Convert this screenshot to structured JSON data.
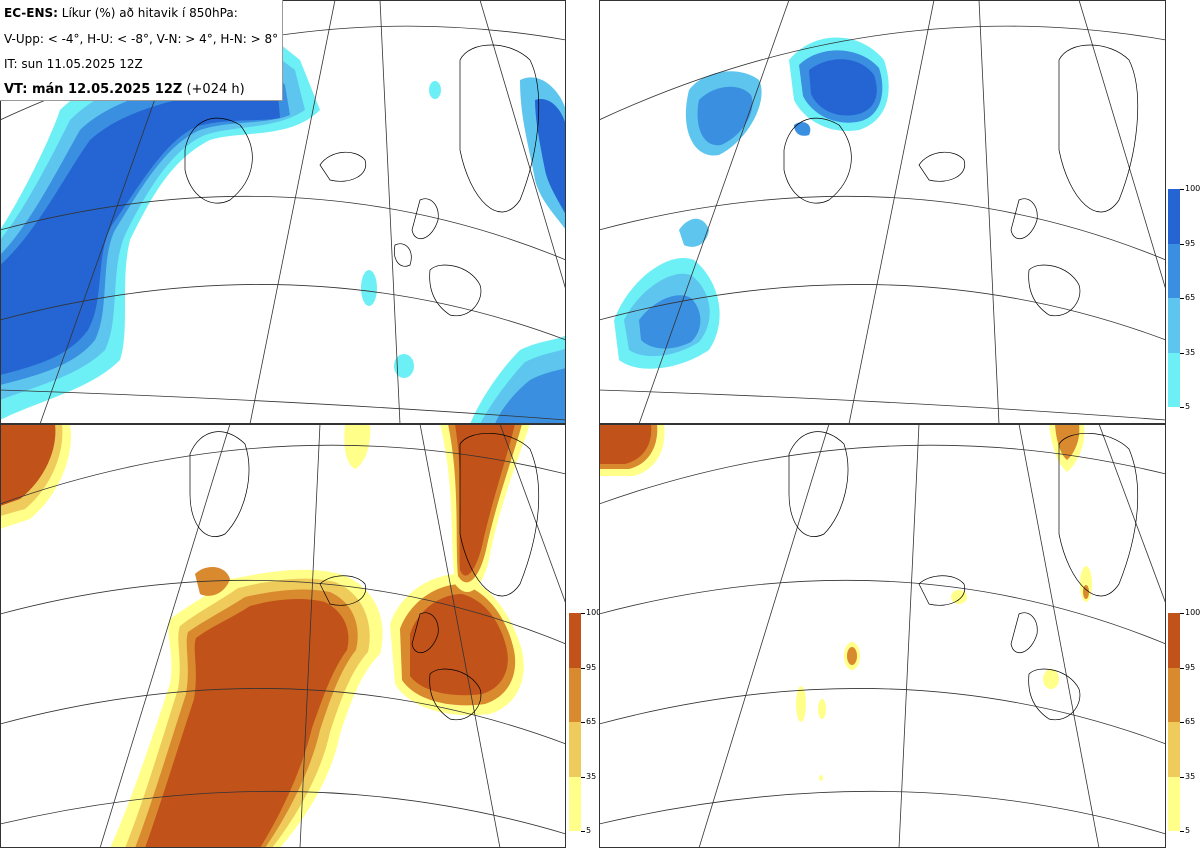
{
  "header": {
    "title_bold": "EC-ENS:",
    "title_rest": " Líkur (%) að hitavik í 850hPa:",
    "thresholds": "V-Upp: < -4°, H-U: < -8°, V-N: > 4°, H-N: > 8°",
    "init_time": "IT: sun 11.05.2025 12Z",
    "valid_bold": "VT: mán 12.05.2025 12Z",
    "valid_rest": " (+024 h)"
  },
  "panels": [
    {
      "id": "V-Upp",
      "scheme": "cold"
    },
    {
      "id": "H-U",
      "scheme": "cold"
    },
    {
      "id": "V-N",
      "scheme": "warm"
    },
    {
      "id": "H-N",
      "scheme": "warm"
    }
  ],
  "colorbar": {
    "labels": [
      "100",
      "95",
      "65",
      "35",
      "5"
    ],
    "cold_colors": [
      "#2465d3",
      "#3a8fe0",
      "#5ec6ee",
      "#6cf0f6"
    ],
    "warm_colors": [
      "#c0521a",
      "#d9892e",
      "#eecb5a",
      "#ffff8a"
    ]
  }
}
